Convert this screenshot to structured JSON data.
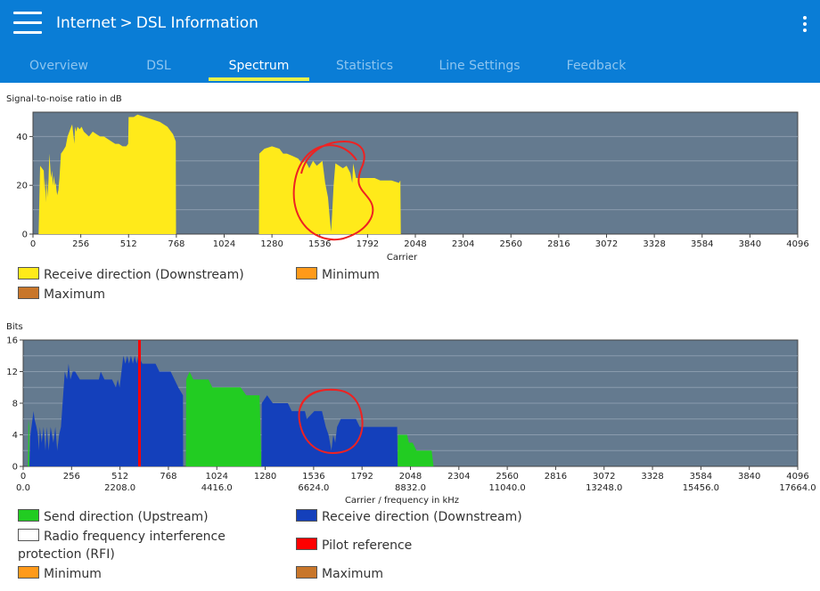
{
  "header": {
    "breadcrumb_root": "Internet",
    "breadcrumb_separator": ">",
    "breadcrumb_current": "DSL Information",
    "tabs": [
      {
        "label": "Overview",
        "active": false
      },
      {
        "label": "DSL",
        "active": false
      },
      {
        "label": "Spectrum",
        "active": true
      },
      {
        "label": "Statistics",
        "active": false
      },
      {
        "label": "Line Settings",
        "active": false
      },
      {
        "label": "Feedback",
        "active": false
      }
    ],
    "colors": {
      "background": "#0a7dd6",
      "tab_indicator": "#e7f04a"
    }
  },
  "chart_data": [
    {
      "type": "area",
      "ylabel": "Signal-to-noise ratio in dB",
      "xlabel": "Carrier",
      "xlim": [
        0,
        4096
      ],
      "ylim": [
        0,
        50
      ],
      "x_ticks": [
        0,
        256,
        512,
        768,
        1024,
        1280,
        1536,
        1792,
        2048,
        2304,
        2560,
        2816,
        3072,
        3328,
        3584,
        3840,
        4096
      ],
      "y_ticks": [
        0,
        20,
        40
      ],
      "grid": true,
      "colors": {
        "plot_background": "#647a8f",
        "fill": "#ffea1a"
      },
      "series": [
        {
          "name": "Receive direction (Downstream)",
          "color": "#ffea1a",
          "points": [
            [
              30,
              0
            ],
            [
              38,
              28
            ],
            [
              48,
              27
            ],
            [
              58,
              26
            ],
            [
              63,
              17
            ],
            [
              66,
              23
            ],
            [
              70,
              13
            ],
            [
              74,
              23
            ],
            [
              78,
              15
            ],
            [
              83,
              22
            ],
            [
              88,
              33
            ],
            [
              93,
              27
            ],
            [
              97,
              23
            ],
            [
              102,
              26
            ],
            [
              107,
              20
            ],
            [
              112,
              24
            ],
            [
              118,
              20
            ],
            [
              122,
              21
            ],
            [
              126,
              18
            ],
            [
              130,
              16
            ],
            [
              136,
              18
            ],
            [
              142,
              23
            ],
            [
              150,
              33
            ],
            [
              160,
              34
            ],
            [
              175,
              36
            ],
            [
              185,
              40
            ],
            [
              205,
              44
            ],
            [
              210,
              45
            ],
            [
              222,
              37
            ],
            [
              225,
              44
            ],
            [
              232,
              42
            ],
            [
              238,
              44
            ],
            [
              250,
              43
            ],
            [
              260,
              44
            ],
            [
              272,
              42
            ],
            [
              300,
              40
            ],
            [
              320,
              42
            ],
            [
              340,
              41
            ],
            [
              360,
              40
            ],
            [
              380,
              40
            ],
            [
              400,
              39
            ],
            [
              420,
              38
            ],
            [
              440,
              37
            ],
            [
              460,
              37
            ],
            [
              480,
              36
            ],
            [
              500,
              36
            ],
            [
              510,
              37
            ],
            [
              512,
              48
            ],
            [
              540,
              48
            ],
            [
              560,
              49
            ],
            [
              600,
              48
            ],
            [
              640,
              47
            ],
            [
              680,
              46
            ],
            [
              720,
              44
            ],
            [
              750,
              41
            ],
            [
              765,
              38
            ],
            [
              766,
              0
            ],
            [
              1210,
              0
            ],
            [
              1212,
              33
            ],
            [
              1240,
              35
            ],
            [
              1280,
              36
            ],
            [
              1320,
              35
            ],
            [
              1340,
              33
            ],
            [
              1360,
              33
            ],
            [
              1390,
              32
            ],
            [
              1420,
              31
            ],
            [
              1440,
              29
            ],
            [
              1460,
              30
            ],
            [
              1480,
              27
            ],
            [
              1500,
              30
            ],
            [
              1520,
              28
            ],
            [
              1550,
              30
            ],
            [
              1565,
              21
            ],
            [
              1580,
              15
            ],
            [
              1590,
              6
            ],
            [
              1597,
              1
            ],
            [
              1602,
              8
            ],
            [
              1610,
              20
            ],
            [
              1620,
              29
            ],
            [
              1640,
              28
            ],
            [
              1660,
              27
            ],
            [
              1680,
              28
            ],
            [
              1700,
              25
            ],
            [
              1710,
              21
            ],
            [
              1715,
              29
            ],
            [
              1730,
              23
            ],
            [
              1760,
              23
            ],
            [
              1800,
              23
            ],
            [
              1830,
              23
            ],
            [
              1860,
              22
            ],
            [
              1890,
              22
            ],
            [
              1920,
              22
            ],
            [
              1960,
              21
            ],
            [
              1968,
              22
            ],
            [
              1970,
              0
            ]
          ]
        },
        {
          "name": "Minimum",
          "color": "#ff9a1a",
          "points": []
        },
        {
          "name": "Maximum",
          "color": "#c8762a",
          "points": []
        }
      ]
    },
    {
      "type": "area",
      "ylabel": "Bits",
      "xlabel": "Carrier / frequency in kHz",
      "xlim": [
        0,
        4096
      ],
      "ylim": [
        0,
        16
      ],
      "x_ticks": [
        0,
        256,
        512,
        768,
        1024,
        1280,
        1536,
        1792,
        2048,
        2304,
        2560,
        2816,
        3072,
        3328,
        3584,
        3840,
        4096
      ],
      "x_tick_freqs": [
        "0.0",
        "2208.0",
        "4416.0",
        "6624.0",
        "8832.0",
        "11040.0",
        "13248.0",
        "15456.0",
        "17664.0"
      ],
      "y_ticks": [
        0,
        4,
        8,
        12,
        16
      ],
      "grid": true,
      "colors": {
        "plot_background": "#647a8f"
      },
      "series": [
        {
          "name": "Send direction (Upstream)",
          "color": "#22cc22",
          "points": [
            [
              25,
              0
            ],
            [
              28,
              6
            ],
            [
              32,
              5
            ],
            [
              33,
              0
            ],
            [
              860,
              0
            ],
            [
              862,
              11
            ],
            [
              880,
              12
            ],
            [
              900,
              11
            ],
            [
              980,
              11
            ],
            [
              1000,
              10
            ],
            [
              1020,
              10
            ],
            [
              1040,
              10
            ],
            [
              1150,
              10
            ],
            [
              1180,
              9
            ],
            [
              1200,
              9
            ],
            [
              1250,
              9
            ],
            [
              1260,
              0
            ],
            [
              1980,
              0
            ],
            [
              1982,
              4
            ],
            [
              2030,
              4
            ],
            [
              2040,
              3
            ],
            [
              2060,
              3
            ],
            [
              2080,
              2
            ],
            [
              2130,
              2
            ],
            [
              2160,
              2
            ],
            [
              2170,
              0
            ]
          ]
        },
        {
          "name": "Receive direction (Downstream)",
          "color": "#1440bb",
          "points": [
            [
              33,
              0
            ],
            [
              38,
              4
            ],
            [
              55,
              7
            ],
            [
              60,
              6
            ],
            [
              70,
              5
            ],
            [
              78,
              4
            ],
            [
              83,
              2
            ],
            [
              88,
              5
            ],
            [
              98,
              3
            ],
            [
              108,
              5
            ],
            [
              118,
              2
            ],
            [
              125,
              5
            ],
            [
              135,
              2
            ],
            [
              145,
              5
            ],
            [
              160,
              3
            ],
            [
              170,
              5
            ],
            [
              180,
              2
            ],
            [
              190,
              4
            ],
            [
              200,
              5
            ],
            [
              220,
              12
            ],
            [
              232,
              11
            ],
            [
              240,
              13
            ],
            [
              250,
              11
            ],
            [
              262,
              12
            ],
            [
              275,
              12
            ],
            [
              300,
              11
            ],
            [
              330,
              11
            ],
            [
              400,
              11
            ],
            [
              410,
              12
            ],
            [
              430,
              11
            ],
            [
              470,
              11
            ],
            [
              490,
              10
            ],
            [
              500,
              11
            ],
            [
              510,
              10
            ],
            [
              520,
              12
            ],
            [
              530,
              14
            ],
            [
              540,
              13
            ],
            [
              550,
              14
            ],
            [
              560,
              13
            ],
            [
              570,
              14
            ],
            [
              580,
              13
            ],
            [
              590,
              14
            ],
            [
              600,
              13
            ],
            [
              610,
              14
            ],
            [
              630,
              13
            ],
            [
              660,
              13
            ],
            [
              700,
              13
            ],
            [
              720,
              12
            ],
            [
              760,
              12
            ],
            [
              780,
              12
            ],
            [
              820,
              10
            ],
            [
              845,
              9
            ],
            [
              846,
              0
            ],
            [
              1260,
              0
            ],
            [
              1262,
              8
            ],
            [
              1290,
              9
            ],
            [
              1320,
              8
            ],
            [
              1360,
              8
            ],
            [
              1380,
              8
            ],
            [
              1400,
              8
            ],
            [
              1420,
              7
            ],
            [
              1460,
              7
            ],
            [
              1490,
              7
            ],
            [
              1500,
              6
            ],
            [
              1540,
              7
            ],
            [
              1580,
              7
            ],
            [
              1600,
              5
            ],
            [
              1615,
              4
            ],
            [
              1630,
              2
            ],
            [
              1640,
              4
            ],
            [
              1650,
              3
            ],
            [
              1660,
              5
            ],
            [
              1680,
              6
            ],
            [
              1720,
              6
            ],
            [
              1760,
              6
            ],
            [
              1780,
              5
            ],
            [
              1800,
              5
            ],
            [
              1900,
              5
            ],
            [
              1960,
              5
            ],
            [
              1978,
              5
            ],
            [
              1980,
              0
            ]
          ]
        },
        {
          "name": "Radio frequency interference protection (RFI)",
          "color": "#ffffff",
          "points": []
        },
        {
          "name": "Pilot reference",
          "color": "#ff0000",
          "carrier": 615
        },
        {
          "name": "Minimum",
          "color": "#ff9a1a",
          "points": []
        },
        {
          "name": "Maximum",
          "color": "#c8762a",
          "points": []
        }
      ]
    }
  ]
}
